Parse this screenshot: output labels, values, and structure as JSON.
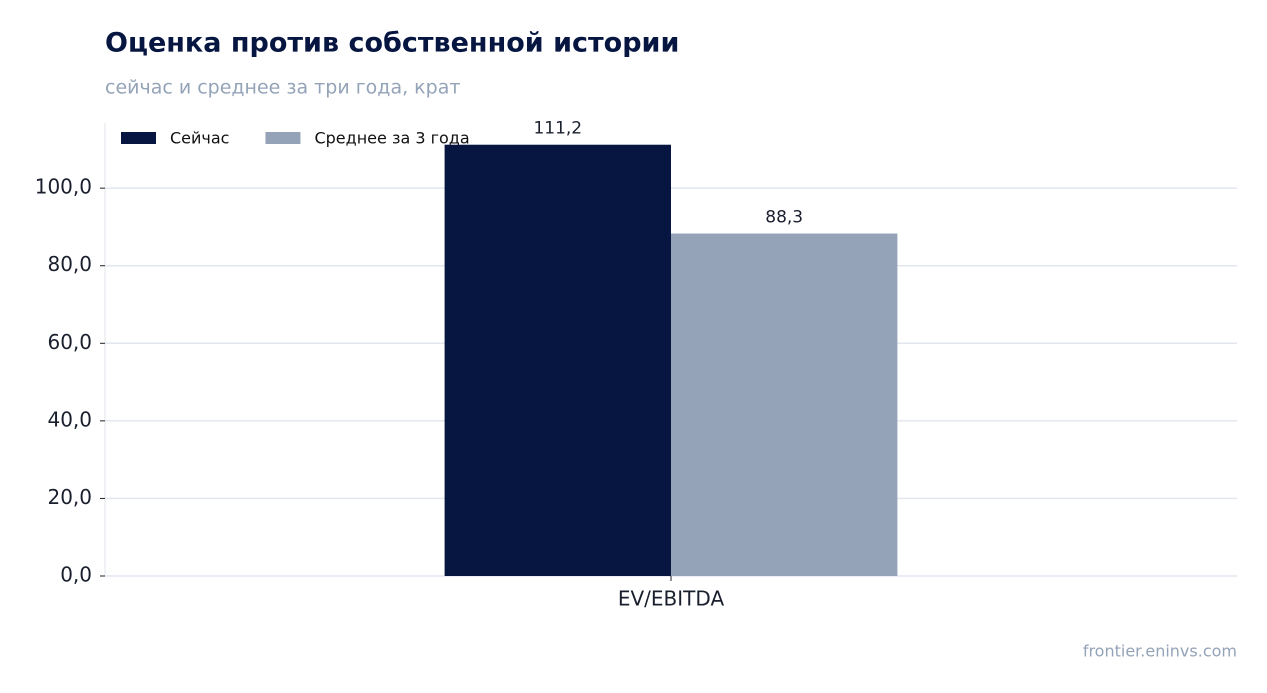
{
  "chart_data": {
    "type": "bar",
    "title": "Оценка против собственной истории",
    "subtitle": "сейчас и среднее за три года, крат",
    "categories": [
      "EV/EBITDA"
    ],
    "series": [
      {
        "name": "Сейчас",
        "color": "#061641",
        "values": [
          111.2
        ],
        "value_labels": [
          "111,2"
        ]
      },
      {
        "name": "Среднее за 3 года",
        "color": "#94a3b8",
        "values": [
          88.3
        ],
        "value_labels": [
          "88,3"
        ]
      }
    ],
    "ylim": [
      0,
      116.8
    ],
    "yticks": [
      {
        "value": 0,
        "label": "0,0"
      },
      {
        "value": 20,
        "label": "20,0"
      },
      {
        "value": 40,
        "label": "40,0"
      },
      {
        "value": 60,
        "label": "60,0"
      },
      {
        "value": 80,
        "label": "80,0"
      },
      {
        "value": 100,
        "label": "100,0"
      }
    ],
    "grid": true,
    "legend": "upper-left",
    "source": "frontier.eninvs.com"
  }
}
